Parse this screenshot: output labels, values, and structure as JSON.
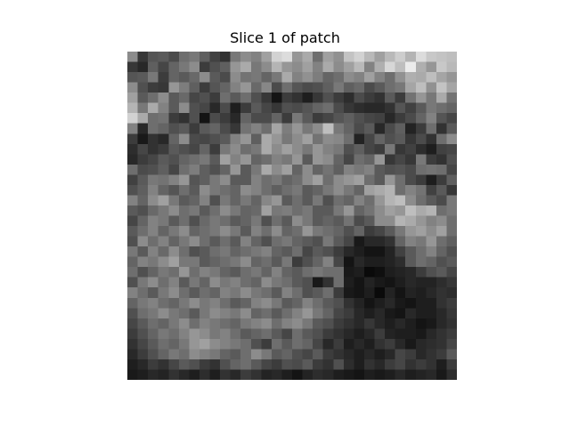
{
  "figure": {
    "title": "Slice 1 of patch",
    "colormap": "gray",
    "axes_visible": false
  },
  "image": {
    "rows": 32,
    "cols": 32,
    "description_of_values": "grayscale intensity 0-255 per cell",
    "grid": [
      [
        140,
        55,
        85,
        90,
        75,
        110,
        120,
        95,
        65,
        50,
        120,
        140,
        130,
        160,
        210,
        220,
        150,
        170,
        110,
        160,
        145,
        195,
        210,
        185,
        160,
        185,
        205,
        180,
        220,
        200,
        195,
        190
      ],
      [
        55,
        40,
        95,
        70,
        100,
        120,
        140,
        60,
        80,
        95,
        150,
        170,
        120,
        140,
        180,
        150,
        140,
        160,
        130,
        170,
        140,
        160,
        185,
        130,
        175,
        215,
        190,
        235,
        175,
        150,
        200,
        185
      ],
      [
        85,
        90,
        120,
        60,
        100,
        90,
        105,
        140,
        90,
        75,
        140,
        115,
        120,
        100,
        120,
        170,
        130,
        145,
        125,
        100,
        110,
        140,
        130,
        160,
        130,
        110,
        145,
        175,
        170,
        190,
        165,
        150
      ],
      [
        140,
        80,
        60,
        55,
        150,
        125,
        95,
        60,
        85,
        100,
        130,
        150,
        105,
        135,
        75,
        110,
        85,
        75,
        80,
        95,
        120,
        95,
        105,
        75,
        90,
        110,
        120,
        165,
        190,
        145,
        195,
        165
      ],
      [
        160,
        90,
        110,
        140,
        90,
        105,
        70,
        80,
        60,
        110,
        90,
        110,
        80,
        55,
        20,
        60,
        50,
        30,
        55,
        80,
        60,
        45,
        75,
        60,
        50,
        90,
        60,
        115,
        150,
        120,
        170,
        115
      ],
      [
        180,
        120,
        170,
        130,
        90,
        140,
        80,
        70,
        40,
        75,
        30,
        60,
        90,
        70,
        55,
        80,
        75,
        85,
        100,
        110,
        75,
        55,
        45,
        40,
        40,
        50,
        85,
        65,
        90,
        120,
        110,
        100
      ],
      [
        210,
        170,
        110,
        115,
        60,
        50,
        80,
        20,
        75,
        60,
        40,
        100,
        75,
        75,
        100,
        60,
        120,
        90,
        60,
        70,
        85,
        95,
        80,
        70,
        65,
        40,
        60,
        75,
        100,
        130,
        85,
        70
      ],
      [
        130,
        40,
        110,
        100,
        80,
        90,
        60,
        90,
        100,
        75,
        55,
        115,
        130,
        110,
        165,
        125,
        150,
        120,
        140,
        190,
        120,
        100,
        75,
        90,
        40,
        75,
        95,
        35,
        60,
        110,
        50,
        90
      ],
      [
        60,
        25,
        50,
        40,
        100,
        140,
        75,
        70,
        80,
        90,
        130,
        150,
        95,
        170,
        150,
        120,
        140,
        160,
        115,
        140,
        135,
        110,
        35,
        70,
        100,
        80,
        90,
        55,
        75,
        50,
        110,
        140
      ],
      [
        45,
        70,
        50,
        60,
        90,
        80,
        70,
        100,
        60,
        120,
        140,
        110,
        120,
        170,
        140,
        160,
        140,
        120,
        150,
        130,
        120,
        80,
        95,
        70,
        60,
        120,
        55,
        65,
        45,
        30,
        65,
        70
      ],
      [
        40,
        60,
        70,
        90,
        80,
        100,
        110,
        120,
        90,
        160,
        130,
        150,
        100,
        110,
        130,
        120,
        150,
        90,
        150,
        140,
        100,
        70,
        110,
        100,
        150,
        55,
        70,
        55,
        120,
        60,
        50,
        80
      ],
      [
        110,
        75,
        80,
        95,
        70,
        110,
        125,
        95,
        80,
        100,
        150,
        90,
        120,
        170,
        140,
        160,
        100,
        140,
        100,
        115,
        95,
        130,
        120,
        130,
        90,
        80,
        85,
        75,
        110,
        115,
        110,
        70
      ],
      [
        65,
        90,
        120,
        115,
        130,
        150,
        85,
        95,
        120,
        140,
        90,
        90,
        130,
        110,
        120,
        100,
        110,
        140,
        160,
        110,
        140,
        150,
        160,
        110,
        90,
        150,
        110,
        75,
        60,
        30,
        60,
        95
      ],
      [
        80,
        95,
        130,
        100,
        85,
        110,
        90,
        140,
        120,
        110,
        100,
        140,
        130,
        110,
        95,
        110,
        120,
        90,
        100,
        120,
        140,
        120,
        100,
        160,
        170,
        180,
        110,
        130,
        115,
        65,
        90,
        55
      ],
      [
        130,
        100,
        140,
        160,
        120,
        90,
        100,
        130,
        80,
        120,
        100,
        120,
        100,
        135,
        150,
        90,
        110,
        90,
        120,
        80,
        110,
        100,
        130,
        110,
        150,
        180,
        190,
        140,
        110,
        90,
        75,
        120
      ],
      [
        90,
        80,
        105,
        120,
        140,
        110,
        120,
        90,
        110,
        140,
        120,
        100,
        105,
        160,
        120,
        125,
        110,
        120,
        90,
        90,
        120,
        150,
        100,
        115,
        140,
        160,
        150,
        190,
        170,
        180,
        110,
        120
      ],
      [
        70,
        100,
        130,
        120,
        90,
        110,
        80,
        105,
        120,
        110,
        90,
        100,
        120,
        80,
        110,
        90,
        140,
        120,
        90,
        100,
        90,
        115,
        75,
        90,
        140,
        140,
        180,
        170,
        150,
        130,
        140,
        110
      ],
      [
        90,
        110,
        130,
        100,
        120,
        140,
        100,
        110,
        120,
        140,
        120,
        90,
        130,
        110,
        140,
        100,
        110,
        150,
        120,
        110,
        100,
        80,
        100,
        60,
        70,
        90,
        120,
        150,
        160,
        140,
        160,
        110
      ],
      [
        80,
        140,
        110,
        130,
        100,
        120,
        140,
        110,
        90,
        110,
        90,
        130,
        100,
        80,
        110,
        120,
        100,
        90,
        80,
        120,
        90,
        70,
        25,
        40,
        40,
        50,
        100,
        130,
        120,
        150,
        110,
        95
      ],
      [
        120,
        90,
        130,
        105,
        140,
        110,
        80,
        90,
        110,
        120,
        100,
        110,
        120,
        130,
        100,
        90,
        110,
        70,
        90,
        80,
        60,
        40,
        30,
        20,
        20,
        35,
        65,
        90,
        110,
        130,
        100,
        80
      ],
      [
        100,
        130,
        120,
        140,
        160,
        120,
        120,
        90,
        100,
        110,
        120,
        140,
        100,
        110,
        90,
        120,
        60,
        80,
        100,
        130,
        70,
        20,
        40,
        30,
        30,
        35,
        45,
        90,
        110,
        100,
        80,
        90
      ],
      [
        110,
        80,
        100,
        120,
        110,
        150,
        110,
        130,
        120,
        100,
        90,
        110,
        120,
        100,
        130,
        100,
        90,
        110,
        120,
        110,
        110,
        25,
        30,
        10,
        15,
        30,
        35,
        40,
        60,
        80,
        90,
        70
      ],
      [
        80,
        120,
        140,
        110,
        130,
        90,
        120,
        100,
        140,
        120,
        130,
        110,
        100,
        140,
        120,
        110,
        90,
        80,
        25,
        50,
        110,
        30,
        20,
        35,
        25,
        20,
        30,
        40,
        35,
        35,
        45,
        55
      ],
      [
        130,
        110,
        90,
        120,
        140,
        110,
        90,
        110,
        100,
        130,
        120,
        140,
        120,
        110,
        90,
        130,
        110,
        80,
        90,
        110,
        60,
        25,
        20,
        30,
        10,
        35,
        20,
        35,
        30,
        40,
        50,
        45
      ],
      [
        100,
        120,
        130,
        110,
        100,
        120,
        140,
        120,
        130,
        110,
        90,
        100,
        130,
        140,
        120,
        90,
        100,
        130,
        110,
        90,
        80,
        50,
        35,
        20,
        30,
        40,
        25,
        20,
        30,
        30,
        50,
        60
      ],
      [
        80,
        110,
        120,
        140,
        120,
        110,
        90,
        120,
        140,
        130,
        120,
        140,
        100,
        110,
        90,
        110,
        130,
        150,
        120,
        100,
        70,
        60,
        40,
        30,
        40,
        25,
        20,
        40,
        30,
        30,
        40,
        55
      ],
      [
        70,
        90,
        110,
        100,
        120,
        140,
        110,
        130,
        120,
        110,
        100,
        120,
        130,
        140,
        110,
        130,
        140,
        120,
        90,
        80,
        60,
        50,
        40,
        55,
        40,
        30,
        40,
        30,
        20,
        25,
        40,
        50
      ],
      [
        60,
        80,
        100,
        120,
        110,
        130,
        150,
        140,
        120,
        130,
        110,
        90,
        100,
        110,
        90,
        70,
        110,
        90,
        80,
        60,
        50,
        40,
        30,
        40,
        60,
        35,
        30,
        30,
        25,
        40,
        50,
        60
      ],
      [
        50,
        70,
        90,
        110,
        100,
        120,
        150,
        160,
        140,
        130,
        120,
        110,
        80,
        60,
        110,
        90,
        110,
        100,
        70,
        40,
        60,
        30,
        40,
        30,
        50,
        60,
        40,
        25,
        40,
        45,
        50,
        70
      ],
      [
        40,
        60,
        80,
        100,
        120,
        110,
        140,
        130,
        120,
        100,
        90,
        110,
        140,
        120,
        90,
        100,
        80,
        70,
        90,
        60,
        50,
        40,
        30,
        40,
        30,
        40,
        70,
        60,
        40,
        50,
        60,
        90
      ],
      [
        30,
        40,
        60,
        50,
        70,
        90,
        80,
        60,
        50,
        80,
        100,
        110,
        90,
        70,
        60,
        80,
        75,
        90,
        60,
        50,
        80,
        45,
        30,
        50,
        40,
        60,
        70,
        50,
        60,
        50,
        30,
        60
      ],
      [
        25,
        30,
        40,
        35,
        50,
        40,
        30,
        45,
        30,
        50,
        40,
        60,
        50,
        35,
        40,
        30,
        20,
        35,
        45,
        40,
        30,
        25,
        20,
        30,
        25,
        30,
        40,
        30,
        35,
        40,
        25,
        45
      ]
    ]
  }
}
